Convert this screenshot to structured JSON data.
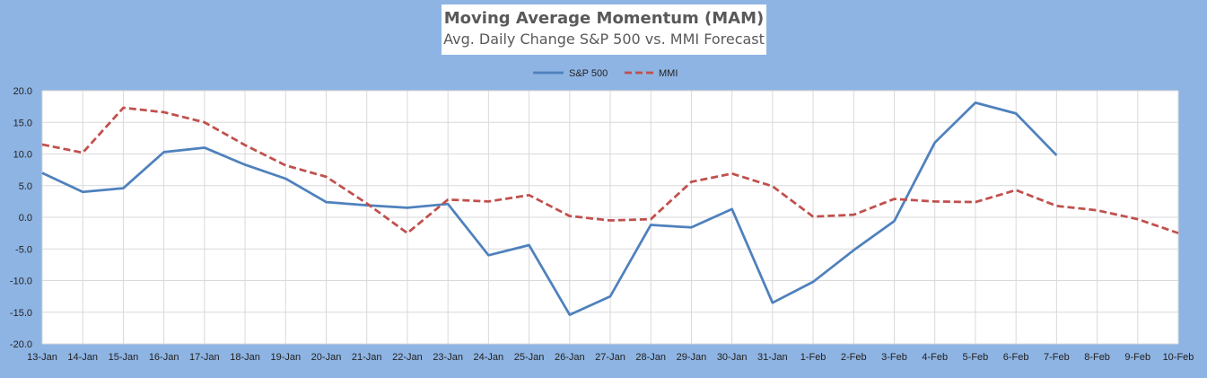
{
  "chart_data": {
    "type": "line",
    "title": "Moving Average Momentum (MAM)",
    "subtitle": "Avg. Daily Change S&P 500 vs. MMI Forecast",
    "xlabel": "",
    "ylabel": "",
    "ylim": [
      -20,
      20
    ],
    "ytick_step": 5,
    "grid": true,
    "legend_position": "top",
    "categories": [
      "13-Jan",
      "14-Jan",
      "15-Jan",
      "16-Jan",
      "17-Jan",
      "18-Jan",
      "19-Jan",
      "20-Jan",
      "21-Jan",
      "22-Jan",
      "23-Jan",
      "24-Jan",
      "25-Jan",
      "26-Jan",
      "27-Jan",
      "28-Jan",
      "29-Jan",
      "30-Jan",
      "31-Jan",
      "1-Feb",
      "2-Feb",
      "3-Feb",
      "4-Feb",
      "5-Feb",
      "6-Feb",
      "7-Feb",
      "8-Feb",
      "9-Feb",
      "10-Feb"
    ],
    "series": [
      {
        "name": "S&P 500",
        "color": "#4F81BD",
        "style": "solid",
        "values": [
          7.0,
          4.0,
          4.6,
          10.3,
          11.0,
          8.3,
          6.1,
          2.4,
          1.9,
          1.5,
          2.1,
          -6.0,
          -4.4,
          -15.4,
          -12.5,
          -1.2,
          -1.6,
          1.3,
          -13.5,
          -10.2,
          -5.2,
          -0.6,
          11.8,
          18.1,
          16.4,
          9.8,
          null,
          null,
          null
        ]
      },
      {
        "name": "MMI",
        "color": "#C0504D",
        "style": "dashed",
        "values": [
          11.5,
          10.2,
          17.3,
          16.6,
          15.0,
          11.4,
          8.2,
          6.4,
          2.2,
          -2.5,
          2.8,
          2.5,
          3.5,
          0.2,
          -0.5,
          -0.3,
          5.6,
          6.9,
          4.9,
          0.1,
          0.4,
          2.9,
          2.5,
          2.4,
          4.3,
          1.8,
          1.1,
          -0.3,
          -2.5
        ]
      }
    ]
  }
}
